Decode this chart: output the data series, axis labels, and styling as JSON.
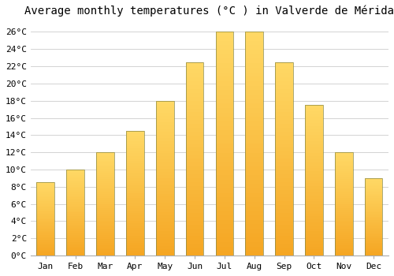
{
  "title": "Average monthly temperatures (°C ) in Valverde de Mérida",
  "months": [
    "Jan",
    "Feb",
    "Mar",
    "Apr",
    "May",
    "Jun",
    "Jul",
    "Aug",
    "Sep",
    "Oct",
    "Nov",
    "Dec"
  ],
  "temperatures": [
    8.5,
    10.0,
    12.0,
    14.5,
    18.0,
    22.5,
    26.0,
    26.0,
    22.5,
    17.5,
    12.0,
    9.0
  ],
  "bar_color_bottom": "#F5A623",
  "bar_color_top": "#FFD966",
  "bar_edge_color": "#888844",
  "ylim": [
    0,
    27
  ],
  "yticks": [
    0,
    2,
    4,
    6,
    8,
    10,
    12,
    14,
    16,
    18,
    20,
    22,
    24,
    26
  ],
  "ytick_labels": [
    "0°C",
    "2°C",
    "4°C",
    "6°C",
    "8°C",
    "10°C",
    "12°C",
    "14°C",
    "16°C",
    "18°C",
    "20°C",
    "22°C",
    "24°C",
    "26°C"
  ],
  "background_color": "#ffffff",
  "grid_color": "#cccccc",
  "title_fontsize": 10,
  "tick_fontsize": 8,
  "font_family": "monospace"
}
